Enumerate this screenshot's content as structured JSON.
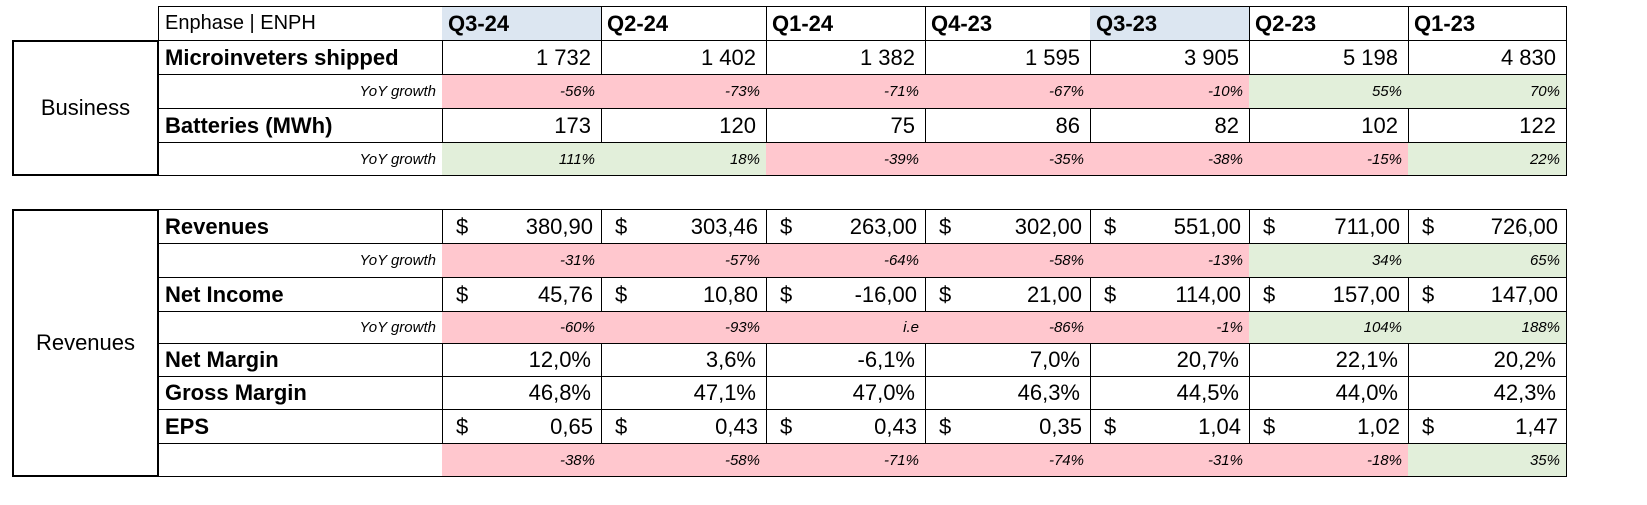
{
  "title": "Enphase | ENPH",
  "quarters": [
    {
      "label": "Q3-24",
      "highlight": true
    },
    {
      "label": "Q2-24",
      "highlight": false
    },
    {
      "label": "Q1-24",
      "highlight": false
    },
    {
      "label": "Q4-23",
      "highlight": false
    },
    {
      "label": "Q3-23",
      "highlight": true
    },
    {
      "label": "Q2-23",
      "highlight": false
    },
    {
      "label": "Q1-23",
      "highlight": false
    }
  ],
  "colors": {
    "negative": "#ffc7ce",
    "positive": "#e2efda",
    "header_highlight": "#dce6f1"
  },
  "business": {
    "section_label": "Business",
    "rows": [
      {
        "label": "Microinveters shipped",
        "type": "value",
        "values": [
          "1 732",
          "1 402",
          "1 382",
          "1 595",
          "3 905",
          "5 198",
          "4 830"
        ]
      },
      {
        "label": "YoY growth",
        "type": "growth",
        "values": [
          "-56%",
          "-73%",
          "-71%",
          "-67%",
          "-10%",
          "55%",
          "70%"
        ],
        "tones": [
          "neg",
          "neg",
          "neg",
          "neg",
          "neg",
          "pos",
          "pos"
        ]
      },
      {
        "label": "Batteries (MWh)",
        "type": "value",
        "values": [
          "173",
          "120",
          "75",
          "86",
          "82",
          "102",
          "122"
        ]
      },
      {
        "label": "YoY growth",
        "type": "growth",
        "values": [
          "111%",
          "18%",
          "-39%",
          "-35%",
          "-38%",
          "-15%",
          "22%"
        ],
        "tones": [
          "pos",
          "pos",
          "neg",
          "neg",
          "neg",
          "neg",
          "pos"
        ]
      }
    ]
  },
  "revenues": {
    "section_label": "Revenues",
    "currency": "$",
    "rows": [
      {
        "label": "Revenues",
        "type": "money",
        "values": [
          "380,90",
          "303,46",
          "263,00",
          "302,00",
          "551,00",
          "711,00",
          "726,00"
        ]
      },
      {
        "label": "YoY growth",
        "type": "growth",
        "values": [
          "-31%",
          "-57%",
          "-64%",
          "-58%",
          "-13%",
          "34%",
          "65%"
        ],
        "tones": [
          "neg",
          "neg",
          "neg",
          "neg",
          "neg",
          "pos",
          "pos"
        ]
      },
      {
        "label": "Net Income",
        "type": "money",
        "values": [
          "45,76",
          "10,80",
          "-16,00",
          "21,00",
          "114,00",
          "157,00",
          "147,00"
        ]
      },
      {
        "label": "YoY growth",
        "type": "growth",
        "values": [
          "-60%",
          "-93%",
          "i.e",
          "-86%",
          "-1%",
          "104%",
          "188%"
        ],
        "tones": [
          "neg",
          "neg",
          "neg",
          "neg",
          "neg",
          "pos",
          "pos"
        ]
      },
      {
        "label": "Net Margin",
        "type": "value",
        "values": [
          "12,0%",
          "3,6%",
          "-6,1%",
          "7,0%",
          "20,7%",
          "22,1%",
          "20,2%"
        ]
      },
      {
        "label": "Gross Margin",
        "type": "value",
        "values": [
          "46,8%",
          "47,1%",
          "47,0%",
          "46,3%",
          "44,5%",
          "44,0%",
          "42,3%"
        ]
      },
      {
        "label": "EPS",
        "type": "money",
        "values": [
          "0,65",
          "0,43",
          "0,43",
          "0,35",
          "1,04",
          "1,02",
          "1,47"
        ]
      },
      {
        "label": "",
        "type": "growth",
        "values": [
          "-38%",
          "-58%",
          "-71%",
          "-74%",
          "-31%",
          "-18%",
          "35%"
        ],
        "tones": [
          "neg",
          "neg",
          "neg",
          "neg",
          "neg",
          "neg",
          "pos"
        ]
      }
    ]
  }
}
